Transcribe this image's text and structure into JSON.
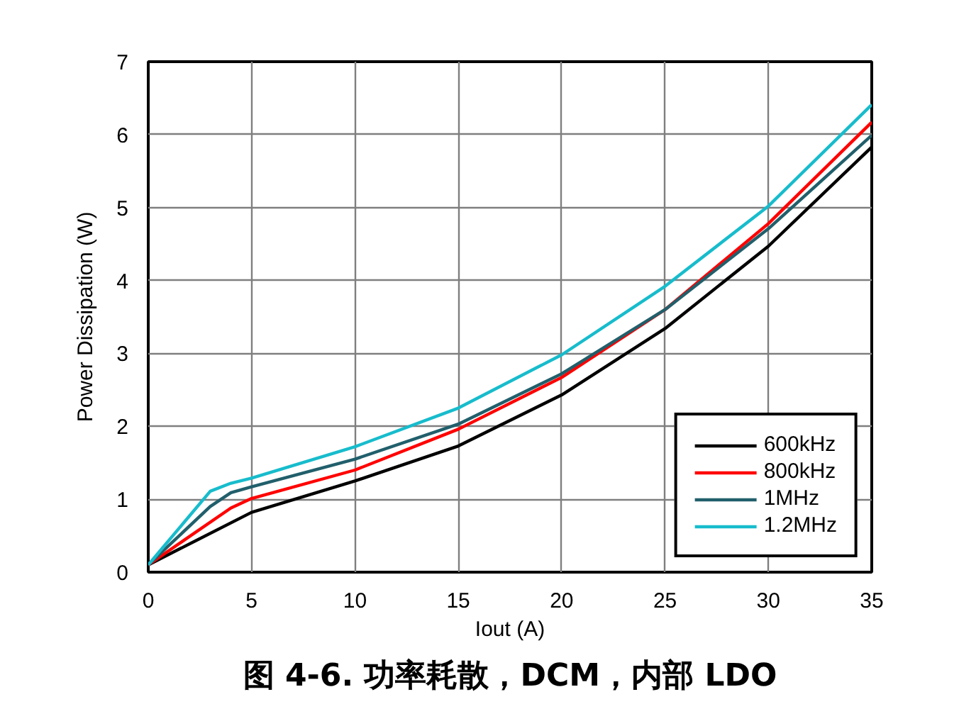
{
  "chart_data": {
    "type": "line",
    "title": "图 4-6. 功率耗散，DCM，内部 LDO",
    "xlabel": "Iout (A)",
    "ylabel": "Power Dissipation (W)",
    "xlim": [
      0,
      35
    ],
    "xticks": [
      0,
      5,
      10,
      15,
      20,
      25,
      30,
      35
    ],
    "ylim": [
      0,
      7
    ],
    "yticks": [
      0,
      1,
      2,
      3,
      4,
      5,
      6,
      7
    ],
    "grid": true,
    "legend": "bottom right",
    "series": [
      {
        "name": "600kHz",
        "color": "#000000",
        "x": [
          0,
          5,
          10,
          15,
          20,
          25,
          30,
          35
        ],
        "values": [
          0.1,
          0.82,
          1.25,
          1.73,
          2.43,
          3.34,
          4.47,
          5.83
        ]
      },
      {
        "name": "800kHz",
        "color": "#ff0000",
        "x": [
          0,
          4,
          5,
          10,
          15,
          20,
          25,
          30,
          35
        ],
        "values": [
          0.1,
          0.88,
          1.01,
          1.4,
          1.96,
          2.67,
          3.6,
          4.78,
          6.17
        ]
      },
      {
        "name": "1MHz",
        "color": "#215f6b",
        "x": [
          0,
          3,
          4,
          5,
          10,
          15,
          20,
          25,
          30,
          35
        ],
        "values": [
          0.1,
          0.9,
          1.09,
          1.17,
          1.55,
          2.03,
          2.72,
          3.6,
          4.71,
          5.99
        ]
      },
      {
        "name": "1.2MHz",
        "color": "#17bccc",
        "x": [
          0,
          3,
          4,
          5,
          10,
          15,
          20,
          25,
          30,
          35
        ],
        "values": [
          0.1,
          1.11,
          1.22,
          1.29,
          1.72,
          2.25,
          2.98,
          3.92,
          5.02,
          6.41
        ]
      }
    ]
  }
}
